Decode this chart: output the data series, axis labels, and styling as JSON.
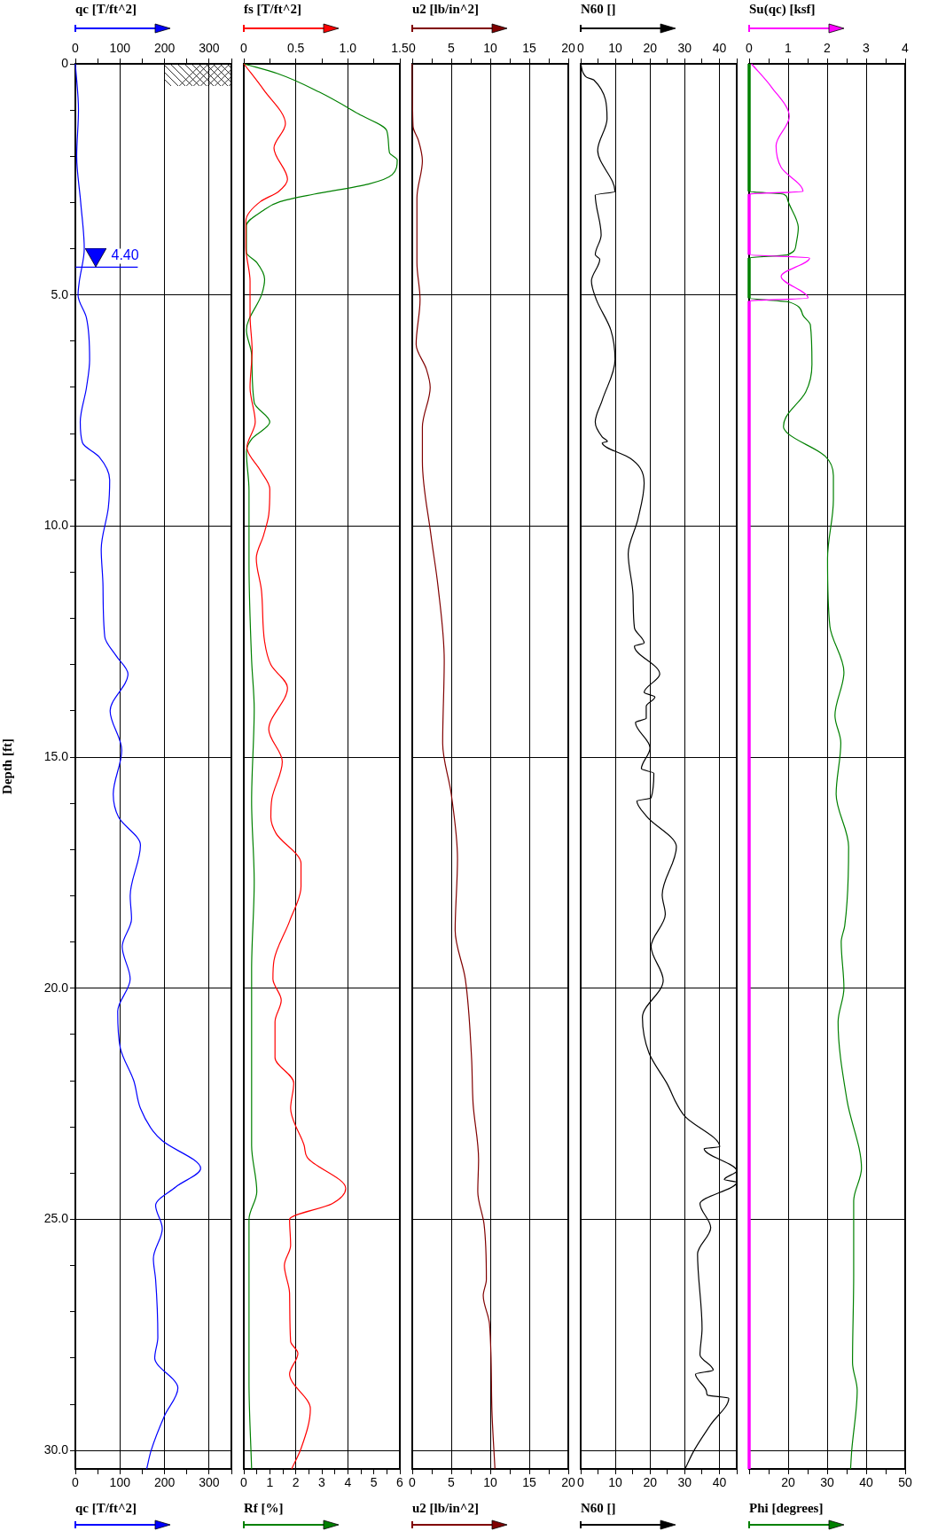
{
  "chart_data": [
    {
      "type": "line",
      "orientation": "horizontal",
      "ylabel": "Depth [ft]",
      "xlabel": "qc [T/ft^2]",
      "x2label": "qc [T/ft^2]",
      "xlim": [
        0,
        350
      ],
      "x2lim": [
        0,
        350
      ],
      "xticks": [
        0,
        {
          "value": 50,
          "label": null
        },
        100,
        {
          "value": 150,
          "label": null
        },
        200,
        {
          "value": 250,
          "label": null
        },
        300,
        {
          "value": 350,
          "label": null
        }
      ],
      "x2ticks": [
        0,
        {
          "value": 50,
          "label": null
        },
        100,
        {
          "value": 150,
          "label": null
        },
        200,
        {
          "value": 250,
          "label": null
        },
        300,
        {
          "value": 350,
          "label": null
        }
      ],
      "ylim": [
        30.4,
        0
      ],
      "yticks": [
        0,
        {
          "value": 1,
          "label": null
        },
        {
          "value": 2,
          "label": null
        },
        {
          "value": 3,
          "label": null
        },
        {
          "value": 4,
          "label": null
        },
        {
          "value": 5,
          "label": "5.0"
        },
        {
          "value": 6,
          "label": null
        },
        {
          "value": 7,
          "label": null
        },
        {
          "value": 8,
          "label": null
        },
        {
          "value": 9,
          "label": null
        },
        {
          "value": 10,
          "label": "10.0"
        },
        {
          "value": 11,
          "label": null
        },
        {
          "value": 12,
          "label": null
        },
        {
          "value": 13,
          "label": null
        },
        {
          "value": 14,
          "label": null
        },
        {
          "value": 15,
          "label": "15.0"
        },
        {
          "value": 16,
          "label": null
        },
        {
          "value": 17,
          "label": null
        },
        {
          "value": 18,
          "label": null
        },
        {
          "value": 19,
          "label": null
        },
        {
          "value": 20,
          "label": "20.0"
        },
        {
          "value": 21,
          "label": null
        },
        {
          "value": 22,
          "label": null
        },
        {
          "value": 23,
          "label": null
        },
        {
          "value": 24,
          "label": null
        },
        {
          "value": 25,
          "label": "25.0"
        },
        {
          "value": 26,
          "label": null
        },
        {
          "value": 27,
          "label": null
        },
        {
          "value": 28,
          "label": null
        },
        {
          "value": 29,
          "label": null
        },
        {
          "value": 30,
          "label": "30.0"
        }
      ],
      "grid": true,
      "ref_lines": [
        {
          "axis": "y",
          "value": 4.4,
          "label": "4.40",
          "color": "#0000ff"
        }
      ],
      "series": [
        {
          "color": "#0000ff",
          "x": [
            0,
            1,
            2,
            3,
            4,
            4.7,
            5,
            5.5,
            6.4,
            7,
            7.75,
            8.2,
            8.5,
            9,
            9.6,
            10.5,
            11.3,
            12.4,
            12.8,
            13.2,
            14,
            14.85,
            15.8,
            16.3,
            16.9,
            18,
            18.5,
            19.1,
            19.8,
            20.5,
            21.3,
            22,
            22.6,
            23.1,
            23.3,
            23.9,
            24.3,
            24.7,
            25.2,
            25.85,
            26.3,
            27.55,
            28,
            28.65,
            29.25,
            30,
            30.4
          ],
          "values": [
            0,
            7,
            3,
            12,
            20,
            9,
            6,
            25,
            32,
            25,
            11,
            16,
            53,
            77,
            74,
            58,
            62,
            66,
            91,
            118,
            78,
            104,
            85,
            97,
            146,
            123,
            126,
            105,
            123,
            95,
            101,
            131,
            146,
            175,
            195,
            281,
            225,
            180,
            195,
            175,
            180,
            185,
            178,
            230,
            200,
            170,
            160
          ]
        }
      ]
    },
    {
      "type": "line",
      "orientation": "horizontal",
      "xlabel": "Rf [%]",
      "x2label": "fs [T/ft^2]",
      "xlim": [
        0,
        6
      ],
      "x2lim": [
        0,
        1.5
      ],
      "xticks": [
        0,
        {
          "value": 0.5,
          "label": null
        },
        1,
        {
          "value": 1.5,
          "label": null
        },
        2,
        {
          "value": 2.5,
          "label": null
        },
        3,
        {
          "value": 3.5,
          "label": null
        },
        4,
        {
          "value": 4.5,
          "label": null
        },
        5,
        {
          "value": 5.5,
          "label": null
        },
        6
      ],
      "x2ticks": [
        0,
        {
          "value": 0.25,
          "label": null
        },
        0.5,
        {
          "value": 0.75,
          "label": null
        },
        {
          "value": 1,
          "label": "1.0"
        },
        {
          "value": 1.25,
          "label": null
        },
        1.5
      ],
      "ylim": [
        30.4,
        0
      ],
      "yticks": [
        5,
        10,
        15,
        20,
        25,
        30
      ],
      "tick_labels": "x",
      "grid": true,
      "series": [
        {
          "color": "#ff0000",
          "axis": "x2",
          "x": [
            0,
            0.56,
            1.3,
            1.82,
            2.5,
            2.77,
            2.98,
            3.4,
            3.97,
            4.7,
            5.44,
            6.2,
            7,
            7.75,
            8.3,
            8.8,
            9.2,
            9.75,
            10.2,
            10.7,
            11.4,
            12.5,
            13,
            13.5,
            14.4,
            15.1,
            15.9,
            16.3,
            16.65,
            17.3,
            17.8,
            18.55,
            19.4,
            19.8,
            20.26,
            20.73,
            21.5,
            22.05,
            22.6,
            23.4,
            23.66,
            24.33,
            24.66,
            25,
            25.56,
            26,
            26.6,
            27.64,
            27.9,
            28.35,
            29.1,
            29.96,
            30.4
          ],
          "values": [
            0,
            0.19,
            0.4,
            0.29,
            0.42,
            0.33,
            0.16,
            0.02,
            0.02,
            0.06,
            0.06,
            0.08,
            0.06,
            0.11,
            0.03,
            0.16,
            0.25,
            0.24,
            0.19,
            0.12,
            0.17,
            0.2,
            0.26,
            0.42,
            0.24,
            0.37,
            0.27,
            0.26,
            0.31,
            0.55,
            0.55,
            0.44,
            0.29,
            0.28,
            0.36,
            0.3,
            0.3,
            0.48,
            0.45,
            0.58,
            0.61,
            0.98,
            0.85,
            0.44,
            0.45,
            0.39,
            0.44,
            0.45,
            0.52,
            0.44,
            0.64,
            0.55,
            0.46
          ]
        },
        {
          "color": "#008000",
          "x": [
            0,
            0.21,
            0.61,
            1.08,
            1.45,
            1.92,
            2.08,
            2.4,
            2.6,
            2.82,
            2.98,
            3.19,
            3.5,
            4.08,
            4.3,
            4.66,
            4.97,
            5.76,
            6.29,
            7.33,
            7.75,
            8.12,
            8.39,
            9.23,
            10.8,
            12.9,
            13.96,
            15.95,
            17.7,
            19.6,
            21.5,
            23.4,
            24.4,
            25,
            27.2,
            28.5,
            30.4
          ],
          "values": [
            0,
            1.3,
            2.9,
            4.4,
            5.5,
            5.6,
            5.9,
            5.7,
            4.8,
            2.7,
            1.4,
            0.7,
            0.1,
            0.1,
            0.5,
            0.8,
            0.7,
            0.1,
            0.3,
            0.4,
            1,
            0.3,
            0.1,
            0.2,
            0.2,
            0.3,
            0.4,
            0.3,
            0.4,
            0.3,
            0.3,
            0.3,
            0.5,
            0.2,
            0.2,
            0.2,
            0.3
          ]
        }
      ]
    },
    {
      "type": "line",
      "orientation": "horizontal",
      "xlabel": "u2 [lb/in^2]",
      "x2label": "u2 [lb/in^2]",
      "xlim": [
        0,
        20
      ],
      "x2lim": [
        0,
        20
      ],
      "xticks": [
        0,
        {
          "value": 2.5,
          "label": null
        },
        5,
        {
          "value": 7.5,
          "label": null
        },
        10,
        {
          "value": 12.5,
          "label": null
        },
        15,
        {
          "value": 17.5,
          "label": null
        },
        20
      ],
      "x2ticks": [
        0,
        {
          "value": 2.5,
          "label": null
        },
        5,
        {
          "value": 7.5,
          "label": null
        },
        10,
        {
          "value": 12.5,
          "label": null
        },
        15,
        {
          "value": 17.5,
          "label": null
        },
        20
      ],
      "ylim": [
        30.4,
        0
      ],
      "yticks": [
        5,
        10,
        15,
        20,
        25,
        30
      ],
      "tick_labels": "x",
      "grid": true,
      "series": [
        {
          "color": "#800000",
          "x": [
            0,
            1.35,
            1.66,
            2.1,
            2.9,
            4.3,
            5.1,
            6.07,
            6.6,
            7,
            7.86,
            8.6,
            10.2,
            11.3,
            12.9,
            14.7,
            15.8,
            17.2,
            18.75,
            19.8,
            21.5,
            22.5,
            23.7,
            24.4,
            25.1,
            26.3,
            26.65,
            27.26,
            29.06,
            30.4
          ],
          "values": [
            0,
            0.1,
            0.8,
            1.3,
            0.6,
            0.6,
            1,
            0.5,
            1.8,
            2.3,
            1.3,
            1.3,
            2.4,
            3.3,
            4.1,
            3.9,
            5,
            5.8,
            5.5,
            6.8,
            7.6,
            7.8,
            8.5,
            8.4,
            9.2,
            9.5,
            9.1,
            9.9,
            10.2,
            10.6
          ]
        }
      ]
    },
    {
      "type": "line",
      "orientation": "horizontal",
      "xlabel": "N60 []",
      "x2label": "N60 []",
      "xlim": [
        0,
        45
      ],
      "x2lim": [
        0,
        45
      ],
      "xticks": [
        0,
        {
          "value": 5,
          "label": null
        },
        10,
        {
          "value": 15,
          "label": null
        },
        20,
        {
          "value": 25,
          "label": null
        },
        30,
        {
          "value": 35,
          "label": null
        },
        40,
        {
          "value": 45,
          "label": null
        }
      ],
      "x2ticks": [
        0,
        {
          "value": 5,
          "label": null
        },
        10,
        {
          "value": 15,
          "label": null
        },
        20,
        {
          "value": 25,
          "label": null
        },
        30,
        {
          "value": 35,
          "label": null
        },
        40,
        {
          "value": 45,
          "label": null
        }
      ],
      "ylim": [
        30.4,
        0
      ],
      "yticks": [
        5,
        10,
        15,
        20,
        25,
        30
      ],
      "tick_labels": "x",
      "grid": true,
      "series": [
        {
          "color": "#000000",
          "x": [
            0,
            0.29,
            0.35,
            1.19,
            1.87,
            2.76,
            2.84,
            3.7,
            4.13,
            4.23,
            4.7,
            5.1,
            5.76,
            6.4,
            7.28,
            7.75,
            8.07,
            8.17,
            8.2,
            8.54,
            8.75,
            9.07,
            9.85,
            10.6,
            11.5,
            12.2,
            12.53,
            12.6,
            13.2,
            13.6,
            13.7,
            13.9,
            14.16,
            14.25,
            14.8,
            15.25,
            15.35,
            15.88,
            15.95,
            16.28,
            16.94,
            17.98,
            18.4,
            19.1,
            19.83,
            20.63,
            21.4,
            22.05,
            22.76,
            23.43,
            23.47,
            23.95,
            24.14,
            24.2,
            24.66,
            25.18,
            25.75,
            27.36,
            27.93,
            28.26,
            28.35,
            28.73,
            28.8,
            28.87,
            29.44,
            30,
            30.4
          ],
          "values": [
            0,
            1.7,
            3.8,
            7.6,
            4.9,
            9.9,
            4.2,
            5.9,
            4.2,
            5.5,
            3.1,
            4.5,
            8.7,
            9.9,
            6.2,
            4.2,
            6.2,
            7.7,
            6.2,
            14.4,
            17.2,
            18.3,
            16.5,
            13.7,
            15.1,
            15.5,
            18.3,
            15.5,
            22.8,
            18.3,
            21.4,
            18.9,
            18.9,
            15.8,
            20,
            17.5,
            21.1,
            20.3,
            16.2,
            19,
            27.6,
            23.5,
            24.4,
            20.3,
            23.8,
            17.8,
            19.7,
            24.8,
            29.9,
            40.1,
            35.6,
            45,
            41.4,
            45,
            34.4,
            37.5,
            33.7,
            35,
            34.4,
            38.2,
            33.1,
            36.3,
            36.5,
            42.7,
            37.5,
            32.7,
            30.1
          ]
        }
      ]
    },
    {
      "type": "line",
      "orientation": "horizontal",
      "xlabel": "Phi [degrees]",
      "x2label": "Su(qc) [ksf]",
      "xlim": [
        10,
        50
      ],
      "x2lim": [
        0,
        4
      ],
      "xticks": [
        {
          "value": 10,
          "label": null
        },
        {
          "value": 15,
          "label": null
        },
        20,
        {
          "value": 25,
          "label": null
        },
        30,
        {
          "value": 35,
          "label": null
        },
        40,
        {
          "value": 45,
          "label": null
        },
        50
      ],
      "x2ticks": [
        0,
        {
          "value": 0.5,
          "label": null
        },
        1,
        {
          "value": 1.5,
          "label": null
        },
        2,
        {
          "value": 2.5,
          "label": null
        },
        3,
        {
          "value": 3.5,
          "label": null
        },
        4
      ],
      "ylim": [
        30.4,
        0
      ],
      "yticks": [
        5,
        10,
        15,
        20,
        25,
        30
      ],
      "tick_labels": "x",
      "grid": true,
      "series": [
        {
          "color": "#ff00ff",
          "axis": "x2",
          "x": [
            0,
            0.5,
            1.14,
            1.77,
            2.24,
            2.76,
            2.82,
            4.13,
            4.2,
            4.6,
            5.07,
            5.13,
            30.4
          ],
          "values": [
            0.06,
            0.57,
            1.03,
            0.69,
            0.82,
            1.38,
            0,
            0,
            1.55,
            0.82,
            1.51,
            0,
            0
          ]
        },
        {
          "color": "#008000",
          "x": [
            0,
            2.76,
            2.82,
            2.92,
            3.55,
            3.92,
            4.13,
            4.2,
            5.07,
            5.15,
            5.44,
            5.65,
            6.5,
            7.1,
            7.65,
            7.85,
            8.01,
            8.49,
            8.91,
            9.43,
            10.7,
            12.17,
            13.16,
            14.1,
            14.69,
            15.8,
            16.94,
            18.65,
            19,
            20,
            20.73,
            22.43,
            23.9,
            24.6,
            26.2,
            28.1,
            28.7,
            30,
            30.4
          ],
          "values": [
            10,
            10,
            18.8,
            19.8,
            22.6,
            22,
            19.9,
            10,
            10,
            20.1,
            23.8,
            25.7,
            26.1,
            24.5,
            19.4,
            18.8,
            20.1,
            29.5,
            31.6,
            31.6,
            30.1,
            30.7,
            34.3,
            32,
            33.5,
            32.3,
            35.5,
            34.5,
            33.6,
            34.3,
            32.8,
            35.1,
            38.8,
            36.8,
            36.8,
            36.5,
            37.7,
            36.3,
            36
          ]
        }
      ]
    }
  ]
}
